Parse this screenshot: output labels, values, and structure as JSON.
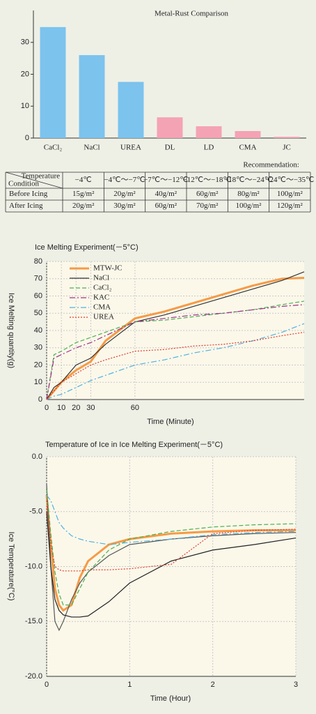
{
  "chart_data": [
    {
      "type": "bar",
      "title": "Metal-Rust Comparison",
      "categories": [
        "CaCl₂",
        "NaCl",
        "UREA",
        "DL",
        "LD",
        "CMA",
        "JC"
      ],
      "values": [
        34.8,
        26,
        17.6,
        6.5,
        3.7,
        2.2,
        0.4
      ],
      "colors": [
        "#7cc3ee",
        "#7cc3ee",
        "#7cc3ee",
        "#f4a3b4",
        "#f4a3b4",
        "#f4a3b4",
        "#f4a3b4"
      ],
      "ylim": [
        0,
        40
      ],
      "yticks": [
        0,
        10,
        20,
        30
      ]
    },
    {
      "type": "line",
      "title": "Ice Melting Experiment(－5°C)",
      "x_label": "Time (Minute)",
      "y_label": "Ice Melting quantity(g)",
      "x": [
        0,
        5,
        10,
        20,
        30,
        40,
        60,
        80,
        100,
        120,
        140,
        160,
        175
      ],
      "xlim": [
        0,
        175
      ],
      "xticks": [
        0,
        10,
        20,
        30,
        60
      ],
      "ylim": [
        0,
        80
      ],
      "yticks": [
        0,
        10,
        20,
        30,
        40,
        50,
        60,
        70,
        80
      ],
      "grid": true,
      "legend": "top-left",
      "series": [
        {
          "name": "MTW-JC",
          "color": "#f79a45",
          "style": "solid",
          "width": 3,
          "values": [
            0,
            5,
            10,
            17,
            22,
            34,
            47,
            51,
            56,
            61,
            66,
            70,
            70.5
          ]
        },
        {
          "name": "NaCl",
          "color": "#333333",
          "style": "solid",
          "width": 1.2,
          "values": [
            0,
            7,
            10,
            20,
            24,
            32,
            45,
            49,
            54,
            59,
            64,
            69,
            74
          ]
        },
        {
          "name": "CaCl₂",
          "color": "#4caf50",
          "style": "dashed",
          "width": 1.2,
          "values": [
            0,
            26,
            28,
            33,
            36,
            39,
            45,
            46,
            48,
            50,
            52,
            55,
            57
          ]
        },
        {
          "name": "KAC",
          "color": "#a0308a",
          "style": "dashdot",
          "width": 1.2,
          "values": [
            0,
            24,
            26,
            30,
            33,
            37,
            45,
            47,
            49,
            50,
            52,
            54,
            55
          ]
        },
        {
          "name": "CMA",
          "color": "#4fb0e0",
          "style": "dashdot",
          "width": 1.2,
          "values": [
            0,
            2,
            3,
            7,
            11,
            14,
            20,
            23,
            27,
            30,
            34,
            39,
            44
          ]
        },
        {
          "name": "UREA",
          "color": "#e03a2a",
          "style": "dotted",
          "width": 1.2,
          "values": [
            0,
            5,
            10,
            15,
            20,
            23,
            28,
            29,
            31,
            32,
            34,
            37,
            39
          ]
        }
      ]
    },
    {
      "type": "line",
      "title": "Temperature of Ice in Ice Melting Experiment(－5°C)",
      "x_label": "Time (Hour)",
      "y_label": "Ice Temperature(°C)",
      "x": [
        0,
        0.05,
        0.1,
        0.15,
        0.2,
        0.3,
        0.4,
        0.5,
        0.75,
        1,
        1.5,
        2,
        2.5,
        3
      ],
      "xlim": [
        0,
        3
      ],
      "xticks": [
        0,
        1,
        2,
        3
      ],
      "ylim": [
        -20,
        0
      ],
      "yticks": [
        {
          "value": -20,
          "label": "-20.0"
        },
        {
          "value": -15,
          "label": "-15.0"
        },
        {
          "value": -10,
          "label": "-10.0"
        },
        {
          "value": -5,
          "label": "-5.0"
        },
        {
          "value": 0,
          "label": "0.0"
        }
      ],
      "grid": true,
      "series": [
        {
          "color": "#f79a45",
          "style": "solid",
          "width": 3,
          "values": [
            -3.5,
            -8,
            -12,
            -13.5,
            -14,
            -13.5,
            -11,
            -9.5,
            -8,
            -7.5,
            -7,
            -6.8,
            -6.7,
            -6.7
          ]
        },
        {
          "color": "#555555",
          "style": "solid",
          "width": 1.2,
          "values": [
            -2.5,
            -10,
            -15,
            -15.8,
            -15,
            -13,
            -11.5,
            -10.5,
            -9,
            -8,
            -7.5,
            -7.2,
            -7,
            -6.9
          ]
        },
        {
          "color": "#222222",
          "style": "solid",
          "width": 1.2,
          "values": [
            -5,
            -10,
            -13,
            -14,
            -14.4,
            -14.6,
            -14.6,
            -14.5,
            -13.2,
            -11.5,
            -9.5,
            -8.5,
            -8,
            -7.4
          ]
        },
        {
          "color": "#4caf50",
          "style": "dashed",
          "width": 1.2,
          "values": [
            -3,
            -7,
            -10.5,
            -12.5,
            -13.5,
            -13.5,
            -12,
            -10.5,
            -8.5,
            -7.5,
            -6.8,
            -6.4,
            -6.2,
            -6.1
          ]
        },
        {
          "color": "#4fb0e0",
          "style": "dashdot",
          "width": 1.2,
          "values": [
            -3.5,
            -4,
            -5,
            -6,
            -6.5,
            -7.2,
            -7.5,
            -7.7,
            -8,
            -7.8,
            -7.5,
            -7.1,
            -6.9,
            -6.8
          ]
        },
        {
          "color": "#e03a2a",
          "style": "dotted",
          "width": 1.2,
          "values": [
            -4,
            -8,
            -10,
            -10.3,
            -10.4,
            -10.4,
            -10.4,
            -10.3,
            -10.3,
            -10.2,
            -9.8,
            -7,
            -6.7,
            -6.6
          ]
        }
      ]
    }
  ],
  "table": {
    "note": "Recommendation:",
    "corner": [
      "Temperature",
      "Condition"
    ],
    "columns": [
      "−4℃",
      "−4℃～−7℃",
      "−7℃～−12℃",
      "−12℃～−18℃",
      "−18℃～−24℃",
      "−24℃～−35℃"
    ],
    "rows": [
      [
        "Before Icing",
        "15g/m²",
        "20g/m²",
        "40g/m²",
        "60g/m²",
        "80g/m²",
        "100g/m²"
      ],
      [
        "After Icing",
        "20g/m²",
        "30g/m²",
        "60g/m²",
        "70g/m²",
        "100g/m²",
        "120g/m²"
      ]
    ]
  }
}
